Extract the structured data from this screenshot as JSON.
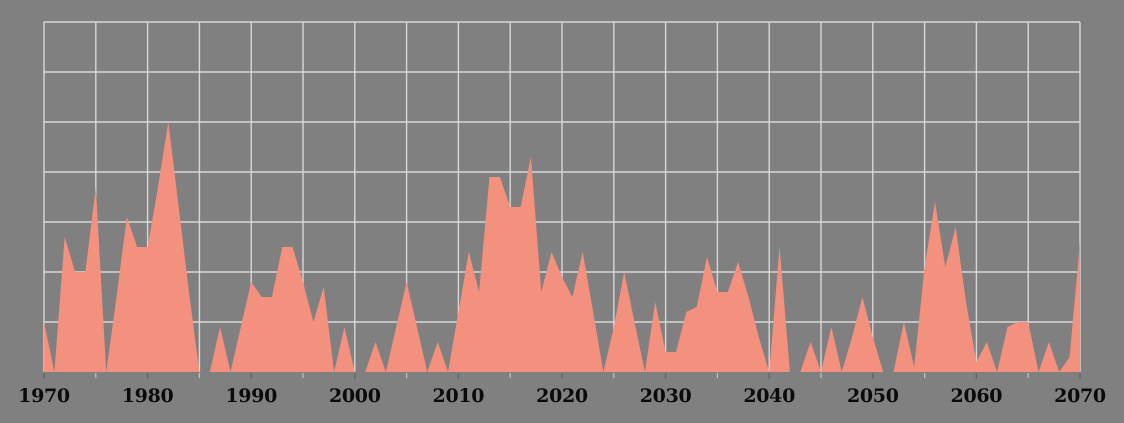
{
  "chart_data": {
    "type": "area",
    "title": "",
    "xlabel": "",
    "ylabel": "",
    "legend": "none",
    "grid": true,
    "x_range": [
      1970,
      2070
    ],
    "y_range": [
      0,
      70
    ],
    "x_gridline_step_years": 5,
    "y_gridline_step": 10,
    "x_tick_label_years": [
      1970,
      1980,
      1990,
      2000,
      2010,
      2020,
      2030,
      2040,
      2050,
      2060,
      2070
    ],
    "x_tick_labels": [
      "1970",
      "1980",
      "1990",
      "2000",
      "2010",
      "2020",
      "2030",
      "2040",
      "2050",
      "2060",
      "2070"
    ],
    "x": [
      1970,
      1971,
      1972,
      1973,
      1974,
      1975,
      1976,
      1977,
      1978,
      1979,
      1980,
      1981,
      1982,
      1983,
      1984,
      1985,
      1986,
      1987,
      1988,
      1989,
      1990,
      1991,
      1992,
      1993,
      1994,
      1995,
      1996,
      1997,
      1998,
      1999,
      2000,
      2001,
      2002,
      2003,
      2004,
      2005,
      2006,
      2007,
      2008,
      2009,
      2010,
      2011,
      2012,
      2013,
      2014,
      2015,
      2016,
      2017,
      2018,
      2019,
      2020,
      2021,
      2022,
      2023,
      2024,
      2025,
      2026,
      2027,
      2028,
      2029,
      2030,
      2031,
      2032,
      2033,
      2034,
      2035,
      2036,
      2037,
      2038,
      2039,
      2040,
      2041,
      2042,
      2043,
      2044,
      2045,
      2046,
      2047,
      2048,
      2049,
      2050,
      2051,
      2052,
      2053,
      2054,
      2055,
      2056,
      2057,
      2058,
      2059,
      2060,
      2061,
      2062,
      2063,
      2064,
      2065,
      2066,
      2067,
      2068,
      2069,
      2070
    ],
    "values": [
      10,
      0,
      27,
      20,
      20,
      37,
      0,
      15,
      31,
      25,
      25,
      37,
      50,
      33,
      16,
      0,
      0,
      9,
      0,
      9,
      18,
      15,
      15,
      25,
      25,
      18,
      10,
      17,
      0,
      9,
      0,
      0,
      6,
      0,
      9,
      18,
      9,
      0,
      6,
      0,
      12,
      24,
      16,
      39,
      39,
      33,
      33,
      43,
      16,
      24,
      19,
      15,
      24,
      12,
      0,
      9,
      20,
      10,
      0,
      14,
      4,
      4,
      12,
      13,
      23,
      16,
      16,
      22,
      15,
      7,
      0,
      25,
      0,
      0,
      6,
      0,
      9,
      0,
      7,
      15,
      7,
      0,
      0,
      10,
      1,
      21,
      34,
      21,
      29,
      14,
      2,
      6,
      0,
      9,
      10,
      10,
      0,
      6,
      0,
      3,
      26
    ]
  },
  "colors": {
    "background": "#808080",
    "area_fill": "#F4907E",
    "gridline": "#D8D8D8",
    "tick_mark_major": "#666666",
    "tick_mark_minor": "#C4C4C4",
    "tick_label": "#0A0A0A"
  }
}
